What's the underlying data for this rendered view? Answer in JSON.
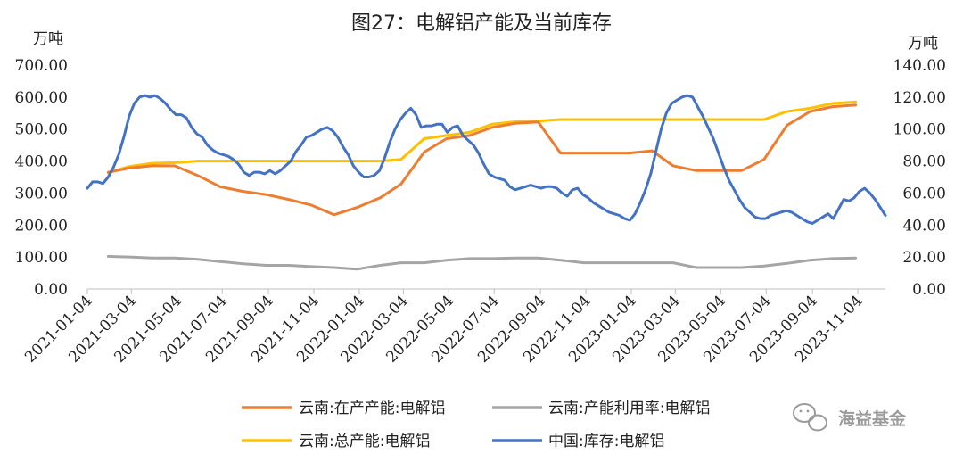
{
  "chart_data": {
    "type": "line",
    "title": "图27：电解铝产能及当前库存",
    "left_unit": "万吨",
    "right_unit": "万吨",
    "left_ylim": [
      0,
      700
    ],
    "right_ylim": [
      0,
      140
    ],
    "left_ticks": [
      "0.00",
      "100.00",
      "200.00",
      "300.00",
      "400.00",
      "500.00",
      "600.00",
      "700.00"
    ],
    "right_ticks": [
      "0.00",
      "20.00",
      "40.00",
      "60.00",
      "80.00",
      "100.00",
      "120.00",
      "140.00"
    ],
    "x_tick_labels": [
      "2021-01-04",
      "2021-03-04",
      "2021-05-04",
      "2021-07-04",
      "2021-09-04",
      "2021-11-04",
      "2022-01-04",
      "2022-03-04",
      "2022-05-04",
      "2022-07-04",
      "2022-09-04",
      "2022-11-04",
      "2023-01-04",
      "2023-03-04",
      "2023-05-04",
      "2023-07-04",
      "2023-09-04",
      "2023-11-04"
    ],
    "grid": false,
    "legend_position": "bottom",
    "series": [
      {
        "name": "云南:在产产能:电解铝",
        "axis": "left",
        "color": "#ED7D31",
        "points": [
          [
            "2021-02",
            365
          ],
          [
            "2021-03",
            378
          ],
          [
            "2021-04",
            385
          ],
          [
            "2021-05",
            385
          ],
          [
            "2021-06",
            355
          ],
          [
            "2021-07",
            320
          ],
          [
            "2021-08",
            305
          ],
          [
            "2021-09",
            295
          ],
          [
            "2021-10",
            280
          ],
          [
            "2021-11",
            262
          ],
          [
            "2021-12",
            232
          ],
          [
            "2022-01",
            255
          ],
          [
            "2022-02",
            285
          ],
          [
            "2022-03",
            328
          ],
          [
            "2022-04",
            428
          ],
          [
            "2022-05",
            470
          ],
          [
            "2022-06",
            480
          ],
          [
            "2022-07",
            505
          ],
          [
            "2022-08",
            518
          ],
          [
            "2022-09",
            522
          ],
          [
            "2022-10",
            425
          ],
          [
            "2022-11",
            425
          ],
          [
            "2022-12",
            425
          ],
          [
            "2023-01",
            425
          ],
          [
            "2023-02",
            432
          ],
          [
            "2023-03",
            385
          ],
          [
            "2023-04",
            370
          ],
          [
            "2023-05",
            370
          ],
          [
            "2023-06",
            370
          ],
          [
            "2023-07",
            405
          ],
          [
            "2023-08",
            512
          ],
          [
            "2023-09",
            555
          ],
          [
            "2023-10",
            570
          ],
          [
            "2023-11",
            575
          ]
        ]
      },
      {
        "name": "云南:产能利用率:电解铝",
        "axis": "left",
        "color": "#A5A5A5",
        "points": [
          [
            "2021-02",
            102
          ],
          [
            "2021-03",
            100
          ],
          [
            "2021-04",
            97
          ],
          [
            "2021-05",
            97
          ],
          [
            "2021-06",
            93
          ],
          [
            "2021-07",
            86
          ],
          [
            "2021-08",
            79
          ],
          [
            "2021-09",
            74
          ],
          [
            "2021-10",
            74
          ],
          [
            "2021-11",
            70
          ],
          [
            "2021-12",
            67
          ],
          [
            "2022-01",
            62
          ],
          [
            "2022-02",
            74
          ],
          [
            "2022-03",
            82
          ],
          [
            "2022-04",
            82
          ],
          [
            "2022-05",
            90
          ],
          [
            "2022-06",
            95
          ],
          [
            "2022-07",
            95
          ],
          [
            "2022-08",
            97
          ],
          [
            "2022-09",
            97
          ],
          [
            "2022-10",
            90
          ],
          [
            "2022-11",
            82
          ],
          [
            "2022-12",
            82
          ],
          [
            "2023-01",
            82
          ],
          [
            "2023-02",
            82
          ],
          [
            "2023-03",
            82
          ],
          [
            "2023-04",
            67
          ],
          [
            "2023-05",
            67
          ],
          [
            "2023-06",
            67
          ],
          [
            "2023-07",
            72
          ],
          [
            "2023-08",
            80
          ],
          [
            "2023-09",
            90
          ],
          [
            "2023-10",
            95
          ],
          [
            "2023-11",
            97
          ]
        ]
      },
      {
        "name": "云南:总产能:电解铝",
        "axis": "left",
        "color": "#FFC000",
        "points": [
          [
            "2021-02",
            363
          ],
          [
            "2021-03",
            383
          ],
          [
            "2021-04",
            393
          ],
          [
            "2021-05",
            395
          ],
          [
            "2021-06",
            400
          ],
          [
            "2021-07",
            400
          ],
          [
            "2021-08",
            400
          ],
          [
            "2021-09",
            400
          ],
          [
            "2021-10",
            400
          ],
          [
            "2021-11",
            400
          ],
          [
            "2021-12",
            400
          ],
          [
            "2022-01",
            400
          ],
          [
            "2022-02",
            400
          ],
          [
            "2022-03",
            405
          ],
          [
            "2022-04",
            470
          ],
          [
            "2022-05",
            480
          ],
          [
            "2022-06",
            490
          ],
          [
            "2022-07",
            515
          ],
          [
            "2022-08",
            523
          ],
          [
            "2022-09",
            525
          ],
          [
            "2022-10",
            530
          ],
          [
            "2022-11",
            530
          ],
          [
            "2022-12",
            530
          ],
          [
            "2023-01",
            530
          ],
          [
            "2023-02",
            530
          ],
          [
            "2023-03",
            530
          ],
          [
            "2023-04",
            530
          ],
          [
            "2023-05",
            530
          ],
          [
            "2023-06",
            530
          ],
          [
            "2023-07",
            530
          ],
          [
            "2023-08",
            555
          ],
          [
            "2023-09",
            565
          ],
          [
            "2023-10",
            580
          ],
          [
            "2023-11",
            585
          ]
        ]
      },
      {
        "name": "中国:库存:电解铝",
        "axis": "right",
        "color": "#4472C4",
        "points": [
          [
            "2021-01-04",
            63
          ],
          [
            "2021-01-11",
            67
          ],
          [
            "2021-01-18",
            67
          ],
          [
            "2021-01-25",
            66
          ],
          [
            "2021-02-01",
            70
          ],
          [
            "2021-02-08",
            76
          ],
          [
            "2021-02-15",
            84
          ],
          [
            "2021-02-22",
            95
          ],
          [
            "2021-03-01",
            108
          ],
          [
            "2021-03-08",
            116
          ],
          [
            "2021-03-15",
            120
          ],
          [
            "2021-03-22",
            121
          ],
          [
            "2021-03-29",
            120
          ],
          [
            "2021-04-05",
            121
          ],
          [
            "2021-04-12",
            119
          ],
          [
            "2021-04-19",
            116
          ],
          [
            "2021-04-26",
            112
          ],
          [
            "2021-05-03",
            109
          ],
          [
            "2021-05-10",
            109
          ],
          [
            "2021-05-17",
            107
          ],
          [
            "2021-05-24",
            101
          ],
          [
            "2021-05-31",
            97
          ],
          [
            "2021-06-07",
            95
          ],
          [
            "2021-06-14",
            90
          ],
          [
            "2021-06-21",
            87
          ],
          [
            "2021-06-28",
            85
          ],
          [
            "2021-07-05",
            84
          ],
          [
            "2021-07-12",
            83
          ],
          [
            "2021-07-19",
            81
          ],
          [
            "2021-07-26",
            78
          ],
          [
            "2021-08-02",
            73
          ],
          [
            "2021-08-09",
            71
          ],
          [
            "2021-08-16",
            73
          ],
          [
            "2021-08-23",
            73
          ],
          [
            "2021-08-30",
            72
          ],
          [
            "2021-09-06",
            74
          ],
          [
            "2021-09-13",
            72
          ],
          [
            "2021-09-20",
            74
          ],
          [
            "2021-09-27",
            77
          ],
          [
            "2021-10-04",
            80
          ],
          [
            "2021-10-11",
            86
          ],
          [
            "2021-10-18",
            90
          ],
          [
            "2021-10-25",
            95
          ],
          [
            "2021-11-01",
            96
          ],
          [
            "2021-11-08",
            98
          ],
          [
            "2021-11-15",
            100
          ],
          [
            "2021-11-22",
            101
          ],
          [
            "2021-11-29",
            99
          ],
          [
            "2021-12-06",
            95
          ],
          [
            "2021-12-13",
            89
          ],
          [
            "2021-12-20",
            84
          ],
          [
            "2021-12-27",
            77
          ],
          [
            "2022-01-03",
            73
          ],
          [
            "2022-01-10",
            70
          ],
          [
            "2022-01-17",
            70
          ],
          [
            "2022-01-24",
            71
          ],
          [
            "2022-01-31",
            74
          ],
          [
            "2022-02-07",
            82
          ],
          [
            "2022-02-14",
            92
          ],
          [
            "2022-02-21",
            100
          ],
          [
            "2022-02-28",
            106
          ],
          [
            "2022-03-07",
            110
          ],
          [
            "2022-03-14",
            113
          ],
          [
            "2022-03-21",
            109
          ],
          [
            "2022-03-28",
            101
          ],
          [
            "2022-04-04",
            102
          ],
          [
            "2022-04-11",
            102
          ],
          [
            "2022-04-18",
            103
          ],
          [
            "2022-04-25",
            103
          ],
          [
            "2022-05-02",
            98
          ],
          [
            "2022-05-09",
            101
          ],
          [
            "2022-05-16",
            102
          ],
          [
            "2022-05-23",
            96
          ],
          [
            "2022-05-30",
            93
          ],
          [
            "2022-06-06",
            90
          ],
          [
            "2022-06-13",
            85
          ],
          [
            "2022-06-20",
            78
          ],
          [
            "2022-06-27",
            72
          ],
          [
            "2022-07-04",
            70
          ],
          [
            "2022-07-11",
            69
          ],
          [
            "2022-07-18",
            68
          ],
          [
            "2022-07-25",
            64
          ],
          [
            "2022-08-01",
            62
          ],
          [
            "2022-08-08",
            63
          ],
          [
            "2022-08-15",
            64
          ],
          [
            "2022-08-22",
            65
          ],
          [
            "2022-08-29",
            64
          ],
          [
            "2022-09-05",
            63
          ],
          [
            "2022-09-12",
            64
          ],
          [
            "2022-09-19",
            64
          ],
          [
            "2022-09-26",
            63
          ],
          [
            "2022-10-03",
            60
          ],
          [
            "2022-10-10",
            58
          ],
          [
            "2022-10-17",
            62
          ],
          [
            "2022-10-24",
            63
          ],
          [
            "2022-10-31",
            59
          ],
          [
            "2022-11-07",
            57
          ],
          [
            "2022-11-14",
            54
          ],
          [
            "2022-11-21",
            52
          ],
          [
            "2022-11-28",
            50
          ],
          [
            "2022-12-05",
            48
          ],
          [
            "2022-12-12",
            47
          ],
          [
            "2022-12-19",
            46
          ],
          [
            "2022-12-26",
            44
          ],
          [
            "2023-01-02",
            43
          ],
          [
            "2023-01-09",
            47
          ],
          [
            "2023-01-16",
            54
          ],
          [
            "2023-01-23",
            62
          ],
          [
            "2023-01-30",
            72
          ],
          [
            "2023-02-06",
            86
          ],
          [
            "2023-02-13",
            100
          ],
          [
            "2023-02-20",
            110
          ],
          [
            "2023-02-27",
            116
          ],
          [
            "2023-03-06",
            118
          ],
          [
            "2023-03-13",
            120
          ],
          [
            "2023-03-20",
            121
          ],
          [
            "2023-03-27",
            120
          ],
          [
            "2023-04-03",
            114
          ],
          [
            "2023-04-10",
            108
          ],
          [
            "2023-04-17",
            101
          ],
          [
            "2023-04-24",
            94
          ],
          [
            "2023-05-01",
            85
          ],
          [
            "2023-05-08",
            76
          ],
          [
            "2023-05-15",
            68
          ],
          [
            "2023-05-22",
            62
          ],
          [
            "2023-05-29",
            56
          ],
          [
            "2023-06-05",
            51
          ],
          [
            "2023-06-12",
            48
          ],
          [
            "2023-06-19",
            45
          ],
          [
            "2023-06-26",
            44
          ],
          [
            "2023-07-03",
            44
          ],
          [
            "2023-07-10",
            46
          ],
          [
            "2023-07-17",
            47
          ],
          [
            "2023-07-24",
            48
          ],
          [
            "2023-07-31",
            49
          ],
          [
            "2023-08-07",
            48
          ],
          [
            "2023-08-14",
            46
          ],
          [
            "2023-08-21",
            44
          ],
          [
            "2023-08-28",
            42
          ],
          [
            "2023-09-04",
            41
          ],
          [
            "2023-09-11",
            43
          ],
          [
            "2023-09-18",
            45
          ],
          [
            "2023-09-25",
            47
          ],
          [
            "2023-10-02",
            44
          ],
          [
            "2023-10-09",
            50
          ],
          [
            "2023-10-16",
            56
          ],
          [
            "2023-10-23",
            55
          ],
          [
            "2023-10-30",
            57
          ],
          [
            "2023-11-06",
            61
          ],
          [
            "2023-11-13",
            63
          ],
          [
            "2023-11-20",
            60
          ],
          [
            "2023-11-27",
            56
          ],
          [
            "2023-12-04",
            51
          ],
          [
            "2023-12-11",
            46
          ]
        ]
      }
    ]
  },
  "watermark": {
    "text": "海益基金",
    "icon": "wechat-icon"
  }
}
